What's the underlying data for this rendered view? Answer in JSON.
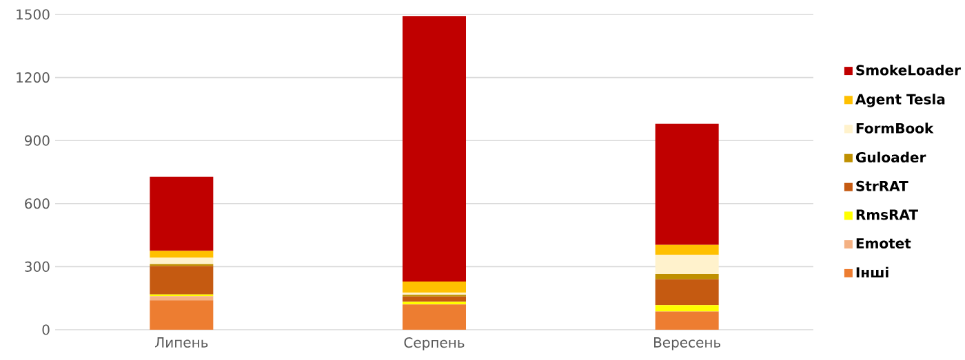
{
  "chart_data": {
    "type": "bar",
    "stacked": true,
    "categories": [
      "Липень",
      "Серпень",
      "Вересень"
    ],
    "series": [
      {
        "name": "Інші",
        "color": "#ed7d31",
        "values": [
          140,
          120,
          87
        ]
      },
      {
        "name": "Emotet",
        "color": "#f4b183",
        "values": [
          20,
          0,
          0
        ]
      },
      {
        "name": "RmsRAT",
        "color": "#ffff00",
        "values": [
          8,
          13,
          30
        ]
      },
      {
        "name": "StrRAT",
        "color": "#c55a11",
        "values": [
          135,
          25,
          123
        ]
      },
      {
        "name": "Guloader",
        "color": "#bf9000",
        "values": [
          9,
          8,
          25
        ]
      },
      {
        "name": "FormBook",
        "color": "#fff2cc",
        "values": [
          30,
          11,
          91
        ]
      },
      {
        "name": "Agent Tesla",
        "color": "#ffc000",
        "values": [
          33,
          52,
          48
        ]
      },
      {
        "name": "SmokeLoader",
        "color": "#c00000",
        "values": [
          353,
          1264,
          576
        ]
      }
    ],
    "ylim": [
      0,
      1500
    ],
    "yticks": [
      0,
      300,
      600,
      900,
      1200,
      1500
    ],
    "grid": "y",
    "legend": "right"
  }
}
